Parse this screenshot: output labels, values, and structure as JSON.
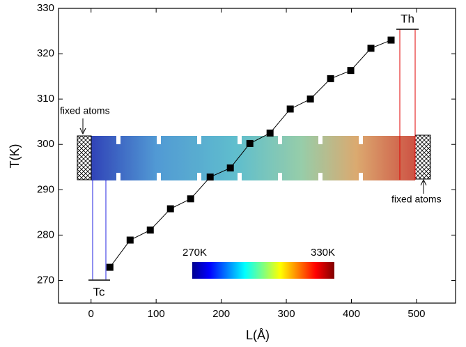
{
  "chart_data": {
    "type": "line",
    "x_label": "L(Å)",
    "y_label": "T(K)",
    "x": [
      29,
      60,
      91,
      122,
      153,
      183,
      214,
      244,
      275,
      306,
      337,
      368,
      399,
      430,
      461
    ],
    "series": [
      {
        "color": "#000000",
        "values": [
          272.9,
          278.9,
          281.1,
          285.8,
          288,
          292.8,
          294.8,
          300.2,
          302.5,
          307.8,
          310,
          314.5,
          316.3,
          321.2,
          323
        ]
      }
    ],
    "xlim": [
      -50,
      560
    ],
    "ylim": [
      265,
      330
    ],
    "xticks": [
      0,
      100,
      200,
      300,
      400,
      500
    ],
    "yticks": [
      270,
      280,
      290,
      300,
      310,
      320,
      330
    ],
    "annotations": [
      "Th",
      "Tc",
      "fixed atoms",
      "fixed atoms"
    ],
    "colorbar_labels": [
      "270K",
      "330K"
    ]
  }
}
